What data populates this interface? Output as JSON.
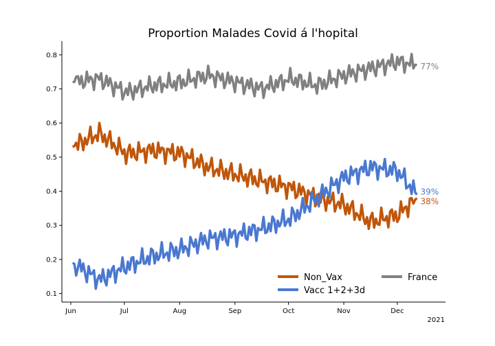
{
  "chart_data": {
    "type": "line",
    "title": "Proportion Malades Covid á l'hopital",
    "xlabel": "",
    "ylabel": "",
    "x_ticks": [
      "Jun",
      "Jul",
      "Aug",
      "Sep",
      "Oct",
      "Nov",
      "Dec"
    ],
    "year_label": "2021",
    "y_ticks": [
      "0.1",
      "0.2",
      "0.3",
      "0.4",
      "0.5",
      "0.6",
      "0.7",
      "0.8"
    ],
    "ylim": [
      0.075,
      0.84
    ],
    "x_days": [
      1,
      16,
      31,
      46,
      62,
      77,
      92,
      107,
      123,
      138,
      153,
      168,
      183,
      194
    ],
    "series": [
      {
        "name": "France",
        "color": "#808080",
        "end_label": "77%",
        "values": [
          0.72,
          0.73,
          0.69,
          0.71,
          0.72,
          0.74,
          0.72,
          0.7,
          0.73,
          0.71,
          0.74,
          0.76,
          0.78,
          0.77
        ]
      },
      {
        "name": "Non_Vax",
        "color": "#c0560a",
        "end_label": "38%",
        "values": [
          0.53,
          0.57,
          0.51,
          0.52,
          0.51,
          0.47,
          0.45,
          0.43,
          0.41,
          0.38,
          0.36,
          0.31,
          0.33,
          0.38
        ]
      },
      {
        "name": "Vacc 1+2+3d",
        "color": "#4a78d0",
        "end_label": "39%",
        "values": [
          0.19,
          0.14,
          0.18,
          0.21,
          0.23,
          0.26,
          0.27,
          0.29,
          0.32,
          0.38,
          0.44,
          0.47,
          0.46,
          0.39
        ]
      }
    ],
    "legend": {
      "position": "lower-right",
      "entries": [
        "Non_Vax",
        "Vacc 1+2+3d",
        "France"
      ]
    }
  }
}
